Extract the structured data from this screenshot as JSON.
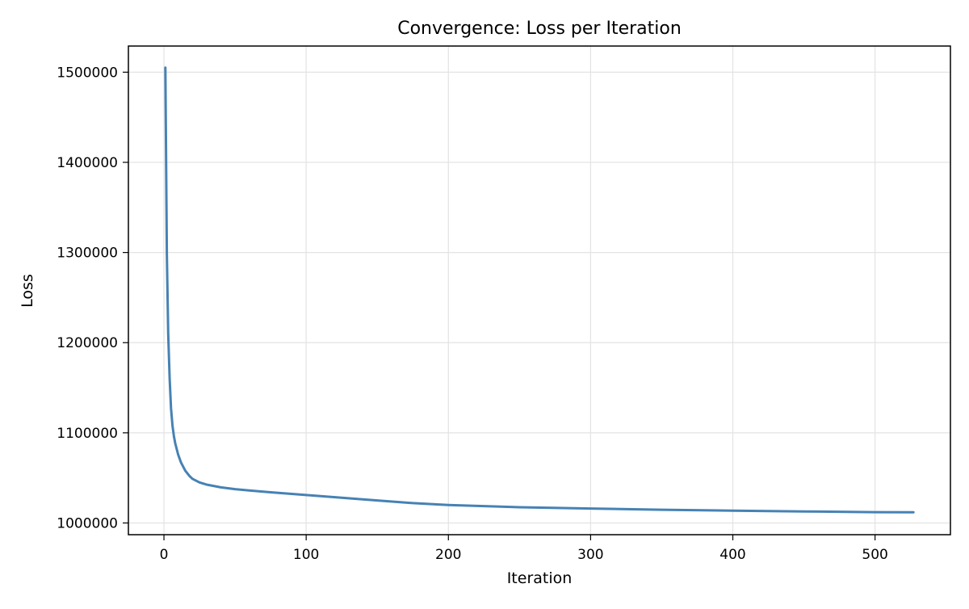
{
  "chart_data": {
    "type": "line",
    "title": "Convergence: Loss per Iteration",
    "xlabel": "Iteration",
    "ylabel": "Loss",
    "xlim": [
      -25,
      553
    ],
    "ylim": [
      987000,
      1529000
    ],
    "xticks": [
      0,
      100,
      200,
      300,
      400,
      500
    ],
    "yticks": [
      1000000,
      1100000,
      1200000,
      1300000,
      1400000,
      1500000
    ],
    "grid": true,
    "series": [
      {
        "color": "#4682b4",
        "x": [
          1,
          2,
          3,
          4,
          5,
          6,
          7,
          8,
          10,
          12,
          15,
          18,
          20,
          25,
          30,
          40,
          50,
          60,
          75,
          100,
          125,
          150,
          175,
          200,
          250,
          300,
          350,
          400,
          450,
          500,
          527
        ],
        "y": [
          1505000,
          1300000,
          1210000,
          1160000,
          1127000,
          1108000,
          1096000,
          1088000,
          1076000,
          1067000,
          1058000,
          1052000,
          1049000,
          1045000,
          1042500,
          1039500,
          1037500,
          1036000,
          1034000,
          1031000,
          1028000,
          1025000,
          1022000,
          1020000,
          1017500,
          1016000,
          1014700,
          1013600,
          1012800,
          1012000,
          1011800
        ]
      }
    ]
  }
}
